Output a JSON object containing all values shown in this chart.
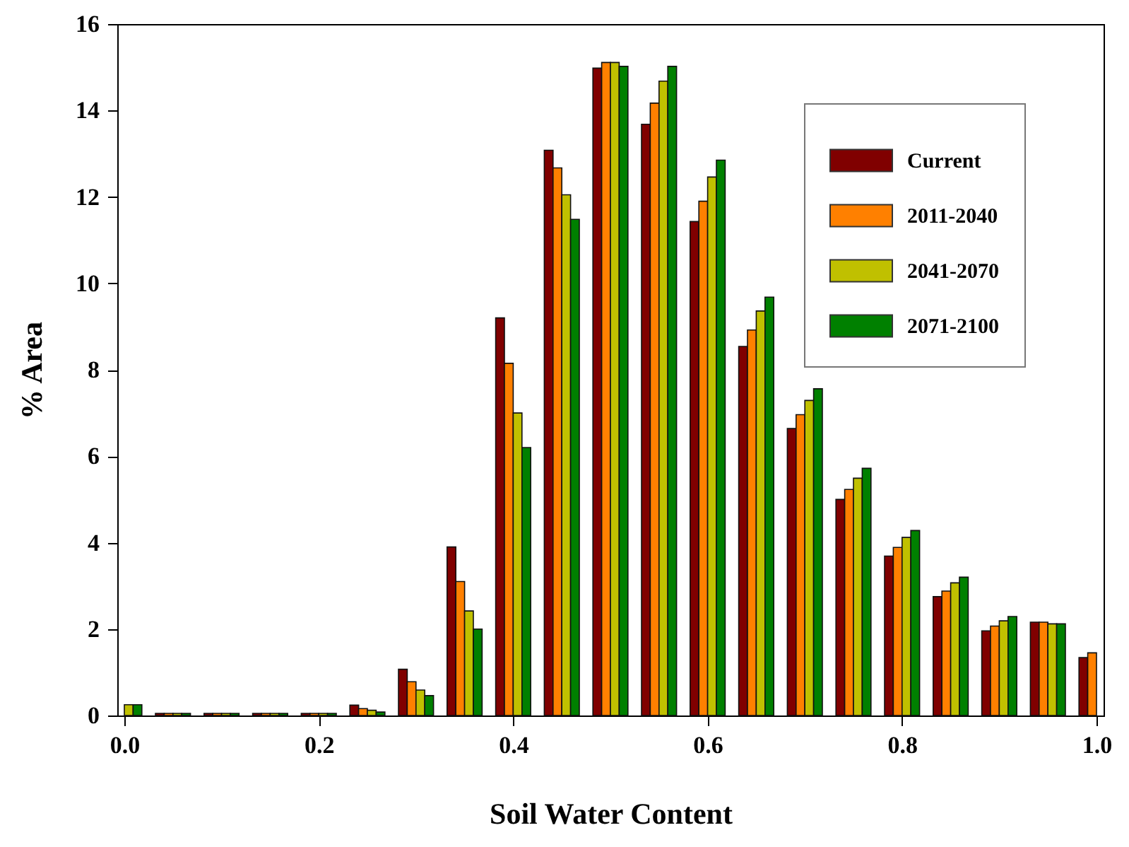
{
  "chart_data": {
    "type": "bar",
    "xlabel": "Soil Water Content",
    "ylabel": "% Area",
    "x": [
      0,
      0.05,
      0.1,
      0.15,
      0.2,
      0.25,
      0.3,
      0.35,
      0.4,
      0.45,
      0.5,
      0.55,
      0.6,
      0.65,
      0.7,
      0.75,
      0.8,
      0.85,
      0.9,
      0.95,
      1.0
    ],
    "series": [
      {
        "name": "Current",
        "color": "#800000",
        "values": [
          null,
          0.05,
          0.05,
          0.05,
          0.05,
          0.24,
          1.07,
          3.9,
          9.2,
          13.08,
          14.98,
          13.68,
          11.43,
          8.54,
          6.64,
          5.0,
          3.69,
          2.75,
          1.96,
          2.16,
          1.34
        ]
      },
      {
        "name": "2011-2040",
        "color": "#ff8000",
        "values": [
          null,
          0.05,
          0.05,
          0.05,
          0.05,
          0.16,
          0.78,
          3.1,
          8.15,
          12.67,
          15.11,
          14.17,
          11.9,
          8.92,
          6.96,
          5.23,
          3.89,
          2.88,
          2.07,
          2.16,
          1.45
        ]
      },
      {
        "name": "2041-2070",
        "color": "#c0c000",
        "values": [
          0.25,
          0.05,
          0.05,
          0.05,
          0.05,
          0.12,
          0.59,
          2.42,
          7.0,
          12.05,
          15.11,
          14.68,
          12.46,
          9.36,
          7.29,
          5.49,
          4.12,
          3.07,
          2.19,
          2.12,
          null
        ]
      },
      {
        "name": "2071-2100",
        "color": "#008000",
        "values": [
          0.25,
          0.05,
          0.05,
          0.05,
          0.05,
          0.08,
          0.46,
          2.0,
          6.2,
          11.48,
          15.02,
          15.02,
          12.85,
          9.68,
          7.56,
          5.72,
          4.28,
          3.2,
          2.29,
          2.12,
          null
        ]
      }
    ],
    "xlim": [
      0,
      1.0
    ],
    "xticks": [
      {
        "value": 0,
        "label": "0.0"
      },
      0.2,
      0.4,
      0.6,
      0.8,
      {
        "value": 1.0,
        "label": "1.0"
      }
    ],
    "ylim": [
      0,
      16
    ],
    "yticks": [
      0,
      2,
      4,
      6,
      8,
      10,
      12,
      14,
      16
    ],
    "legend": "top right"
  }
}
